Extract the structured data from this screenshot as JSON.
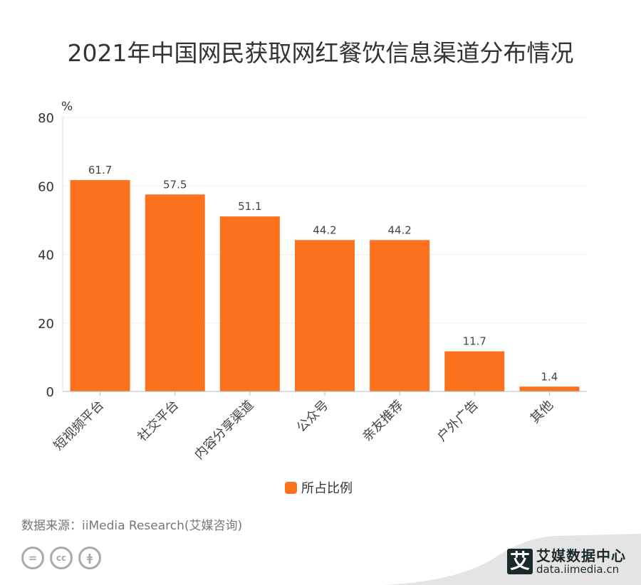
{
  "title": "2021年中国网民获取网红餐饮信息渠道分布情况",
  "chart_data": {
    "type": "bar",
    "title": "2021年中国网民获取网红餐饮信息渠道分布情况",
    "ylabel": "%",
    "xlabel": "",
    "categories": [
      "短视频平台",
      "社交平台",
      "内容分享渠道",
      "公众号",
      "亲友推荐",
      "户外广告",
      "其他"
    ],
    "series": [
      {
        "name": "所占比例",
        "values": [
          61.7,
          57.5,
          51.1,
          44.2,
          44.2,
          11.7,
          1.4
        ],
        "color": "#fc711c"
      }
    ],
    "ylim": [
      0,
      80
    ],
    "yticks": [
      0,
      20,
      40,
      60,
      80
    ],
    "grid": true,
    "legend": "bottom-center"
  },
  "footer": {
    "source": "数据来源：iiMedia Research(艾媒咨询)",
    "brand_mark": "艾",
    "brand_name": "艾媒数据中心",
    "brand_url": "data.iimedia.cn"
  }
}
